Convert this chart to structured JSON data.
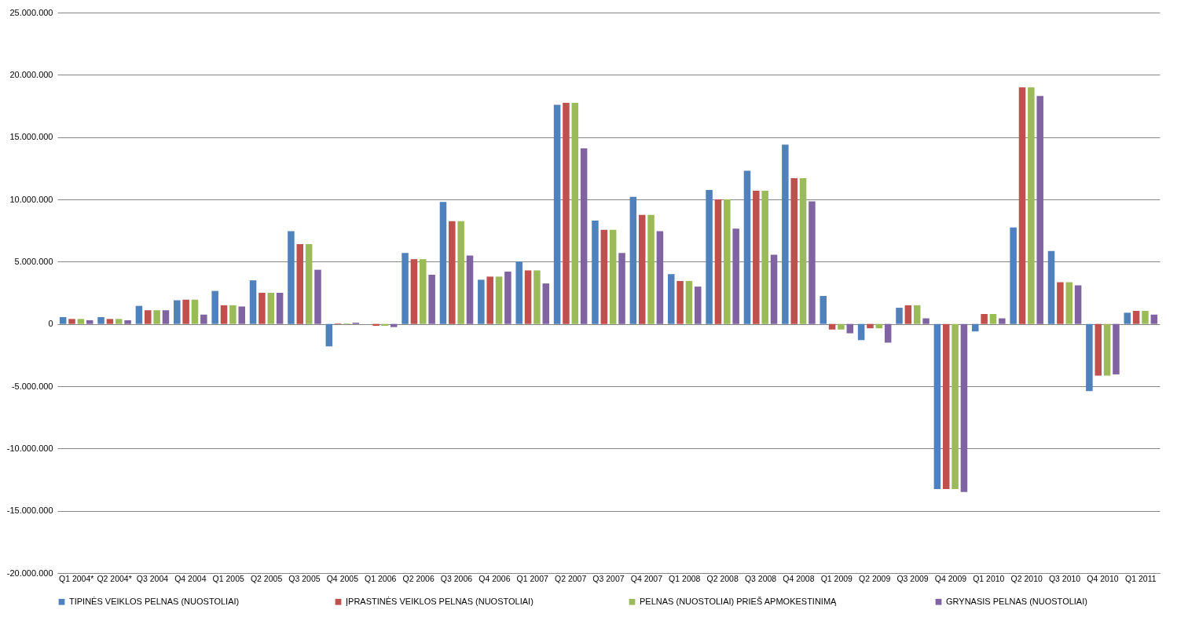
{
  "chart_data": {
    "type": "bar",
    "categories": [
      "Q1 2004*",
      "Q2 2004*",
      "Q3 2004",
      "Q4 2004",
      "Q1 2005",
      "Q2 2005",
      "Q3 2005",
      "Q4 2005",
      "Q1 2006",
      "Q2 2006",
      "Q3 2006",
      "Q4 2006",
      "Q1 2007",
      "Q2 2007",
      "Q3 2007",
      "Q4 2007",
      "Q1 2008",
      "Q2 2008",
      "Q3 2008",
      "Q4 2008",
      "Q1 2009",
      "Q2 2009",
      "Q3 2009",
      "Q4 2009",
      "Q1 2010",
      "Q2 2010",
      "Q3 2010",
      "Q4 2010",
      "Q1 2011"
    ],
    "series": [
      {
        "name": "TIPINĖS VEIKLOS PELNAS (NUOSTOLIAI)",
        "color": "#4f81bd",
        "values": [
          550000,
          550000,
          1450000,
          1900000,
          2650000,
          3500000,
          7450000,
          -1800000,
          0,
          5700000,
          9800000,
          3550000,
          5000000,
          17600000,
          8300000,
          10200000,
          4000000,
          10750000,
          12300000,
          14400000,
          2250000,
          -1300000,
          1300000,
          -13250000,
          -600000,
          7750000,
          5850000,
          -5400000,
          900000
        ]
      },
      {
        "name": "ĮPRASTINĖS VEIKLOS PELNAS (NUOSTOLIAI)",
        "color": "#c0504d",
        "values": [
          400000,
          400000,
          1100000,
          1950000,
          1500000,
          2500000,
          6400000,
          50000,
          -150000,
          5200000,
          8250000,
          3800000,
          4300000,
          17750000,
          7550000,
          8750000,
          3450000,
          10000000,
          10700000,
          11700000,
          -450000,
          -350000,
          1500000,
          -13250000,
          800000,
          19000000,
          3350000,
          -4150000,
          1050000
        ]
      },
      {
        "name": "PELNAS (NUOSTOLIAI)  PRIEŠ APMOKESTINIMĄ",
        "color": "#9bbb59",
        "values": [
          400000,
          400000,
          1100000,
          1950000,
          1500000,
          2500000,
          6400000,
          50000,
          -150000,
          5200000,
          8250000,
          3800000,
          4300000,
          17750000,
          7550000,
          8750000,
          3450000,
          10000000,
          10700000,
          11700000,
          -450000,
          -350000,
          1500000,
          -13250000,
          800000,
          19000000,
          3350000,
          -4150000,
          1050000
        ]
      },
      {
        "name": "GRYNASIS PELNAS (NUOSTOLIAI)",
        "color": "#8064a2",
        "values": [
          300000,
          300000,
          1100000,
          750000,
          1400000,
          2500000,
          4350000,
          100000,
          -250000,
          3950000,
          5500000,
          4200000,
          3250000,
          14100000,
          5700000,
          7450000,
          3000000,
          7650000,
          5550000,
          9850000,
          -750000,
          -1500000,
          450000,
          -13500000,
          450000,
          18300000,
          3100000,
          -4050000,
          750000
        ]
      }
    ],
    "ylim": [
      -20000000,
      25000000
    ],
    "yticks": [
      {
        "value": -20000000,
        "label": "-20.000.000"
      },
      {
        "value": -15000000,
        "label": "-15.000.000"
      },
      {
        "value": -10000000,
        "label": "-10.000.000"
      },
      {
        "value": -5000000,
        "label": "-5.000.000"
      },
      {
        "value": 0,
        "label": "0"
      },
      {
        "value": 5000000,
        "label": "5.000.000"
      },
      {
        "value": 10000000,
        "label": "10.000.000"
      },
      {
        "value": 15000000,
        "label": "15.000.000"
      },
      {
        "value": 20000000,
        "label": "20.000.000"
      },
      {
        "value": 25000000,
        "label": "25.000.000"
      }
    ],
    "grid": "y",
    "legend": "bottom"
  }
}
